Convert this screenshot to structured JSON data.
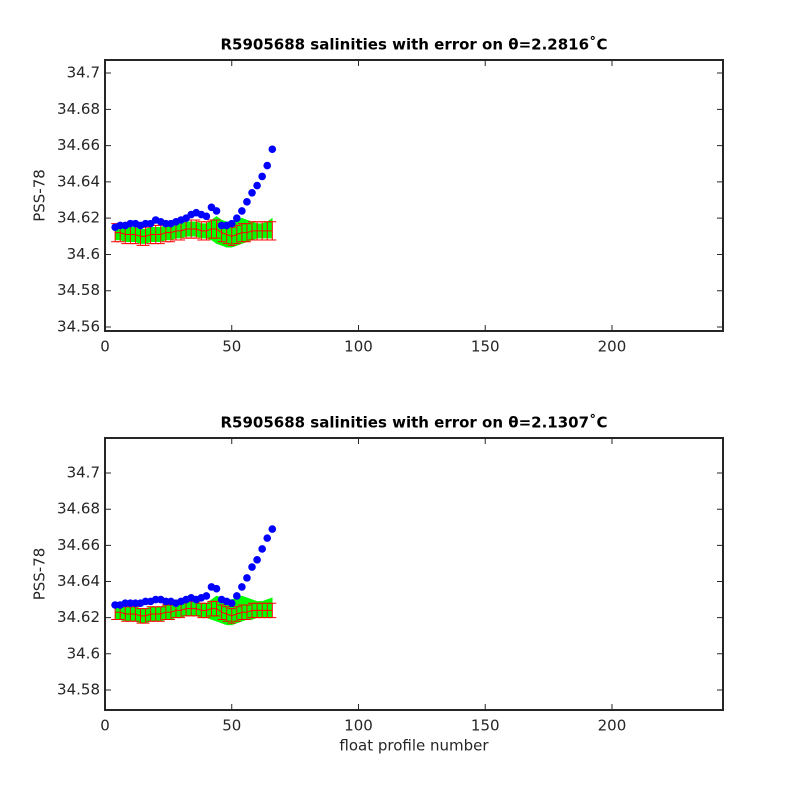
{
  "chart_data": [
    {
      "type": "errorbar",
      "title": "R5905688 salinities with error on θ=2.2816˚C",
      "ylabel": "PSS-78",
      "x": [
        4,
        6,
        8,
        10,
        12,
        14,
        16,
        18,
        20,
        22,
        24,
        26,
        28,
        30,
        32,
        34,
        36,
        38,
        40,
        42,
        44,
        46,
        48,
        50,
        52,
        54,
        56,
        58,
        60,
        62,
        64,
        66
      ],
      "series": [
        {
          "color": "#0000ff",
          "values": [
            34.615,
            34.616,
            34.616,
            34.617,
            34.617,
            34.616,
            34.617,
            34.617,
            34.619,
            34.618,
            34.617,
            34.617,
            34.618,
            34.619,
            34.62,
            34.622,
            34.623,
            34.622,
            34.621,
            34.626,
            34.624,
            34.616,
            34.616,
            34.617,
            34.62,
            34.624,
            34.629,
            34.634,
            34.638,
            34.643,
            34.649,
            34.658
          ]
        },
        {
          "color": "#ff0000",
          "values": [
            34.612,
            34.612,
            34.611,
            34.611,
            34.611,
            34.61,
            34.61,
            34.611,
            34.611,
            34.611,
            34.612,
            34.612,
            34.613,
            34.613,
            34.614,
            34.614,
            34.614,
            34.613,
            34.613,
            34.614,
            34.614,
            34.612,
            34.611,
            34.61,
            34.611,
            34.612,
            34.612,
            34.613,
            34.613,
            34.613,
            34.613,
            34.613
          ],
          "errors": [
            0.005,
            0.005,
            0.005,
            0.005,
            0.005,
            0.005,
            0.005,
            0.005,
            0.005,
            0.005,
            0.005,
            0.005,
            0.005,
            0.005,
            0.005,
            0.005,
            0.005,
            0.005,
            0.005,
            0.005,
            0.005,
            0.005,
            0.005,
            0.005,
            0.005,
            0.005,
            0.005,
            0.005,
            0.005,
            0.005,
            0.005,
            0.005
          ]
        }
      ],
      "band": {
        "color": "#00ff00",
        "lower": [
          34.608,
          34.608,
          34.607,
          34.607,
          34.607,
          34.606,
          34.606,
          34.607,
          34.607,
          34.607,
          34.608,
          34.608,
          34.609,
          34.609,
          34.61,
          34.61,
          34.61,
          34.609,
          34.609,
          34.608,
          34.606,
          34.605,
          34.604,
          34.604,
          34.605,
          34.606,
          34.607,
          34.608,
          34.609,
          34.609,
          34.609,
          34.609
        ],
        "upper": [
          34.616,
          34.616,
          34.615,
          34.615,
          34.615,
          34.614,
          34.614,
          34.615,
          34.615,
          34.615,
          34.616,
          34.616,
          34.617,
          34.617,
          34.618,
          34.618,
          34.618,
          34.617,
          34.617,
          34.619,
          34.621,
          34.619,
          34.618,
          34.618,
          34.619,
          34.62,
          34.619,
          34.618,
          34.617,
          34.617,
          34.618,
          34.62
        ]
      },
      "xlim": [
        0,
        243.8
      ],
      "xticks": [
        0,
        50,
        100,
        150,
        200
      ],
      "ylim": [
        34.5578,
        34.7072
      ],
      "yticks": [
        34.56,
        34.58,
        34.6,
        34.62,
        34.64,
        34.66,
        34.68,
        34.7
      ]
    },
    {
      "type": "errorbar",
      "title": "R5905688 salinities with error on θ=2.1307˚C",
      "ylabel": "PSS-78",
      "xlabel": "float profile number",
      "x": [
        4,
        6,
        8,
        10,
        12,
        14,
        16,
        18,
        20,
        22,
        24,
        26,
        28,
        30,
        32,
        34,
        36,
        38,
        40,
        42,
        44,
        46,
        48,
        50,
        52,
        54,
        56,
        58,
        60,
        62,
        64,
        66
      ],
      "series": [
        {
          "color": "#0000ff",
          "values": [
            34.627,
            34.627,
            34.628,
            34.628,
            34.628,
            34.628,
            34.629,
            34.629,
            34.63,
            34.63,
            34.629,
            34.629,
            34.628,
            34.629,
            34.63,
            34.631,
            34.63,
            34.631,
            34.632,
            34.637,
            34.636,
            34.63,
            34.629,
            34.628,
            34.632,
            34.637,
            34.642,
            34.648,
            34.652,
            34.658,
            34.664,
            34.669
          ]
        },
        {
          "color": "#ff0000",
          "values": [
            34.623,
            34.623,
            34.622,
            34.622,
            34.622,
            34.621,
            34.621,
            34.622,
            34.622,
            34.622,
            34.623,
            34.623,
            34.624,
            34.624,
            34.625,
            34.625,
            34.625,
            34.624,
            34.624,
            34.625,
            34.625,
            34.623,
            34.622,
            34.621,
            34.622,
            34.623,
            34.623,
            34.624,
            34.624,
            34.624,
            34.624,
            34.624
          ],
          "errors": [
            0.004,
            0.004,
            0.004,
            0.004,
            0.004,
            0.004,
            0.004,
            0.004,
            0.004,
            0.004,
            0.004,
            0.004,
            0.004,
            0.004,
            0.004,
            0.004,
            0.004,
            0.004,
            0.004,
            0.004,
            0.004,
            0.004,
            0.004,
            0.004,
            0.004,
            0.004,
            0.004,
            0.004,
            0.004,
            0.004,
            0.004,
            0.004
          ]
        }
      ],
      "band": {
        "color": "#00ff00",
        "lower": [
          34.619,
          34.619,
          34.618,
          34.618,
          34.618,
          34.617,
          34.617,
          34.618,
          34.618,
          34.618,
          34.619,
          34.619,
          34.62,
          34.62,
          34.621,
          34.621,
          34.621,
          34.62,
          34.62,
          34.619,
          34.618,
          34.617,
          34.616,
          34.616,
          34.617,
          34.618,
          34.619,
          34.619,
          34.62,
          34.62,
          34.62,
          34.62
        ],
        "upper": [
          34.627,
          34.627,
          34.626,
          34.626,
          34.626,
          34.625,
          34.625,
          34.626,
          34.626,
          34.626,
          34.627,
          34.627,
          34.628,
          34.628,
          34.629,
          34.629,
          34.629,
          34.628,
          34.628,
          34.63,
          34.632,
          34.631,
          34.63,
          34.63,
          34.631,
          34.632,
          34.631,
          34.63,
          34.629,
          34.629,
          34.63,
          34.631
        ]
      },
      "xlim": [
        0,
        243.8
      ],
      "xticks": [
        0,
        50,
        100,
        150,
        200
      ],
      "ylim": [
        34.5689,
        34.7194
      ],
      "yticks": [
        34.58,
        34.6,
        34.62,
        34.64,
        34.66,
        34.68,
        34.7
      ]
    }
  ]
}
